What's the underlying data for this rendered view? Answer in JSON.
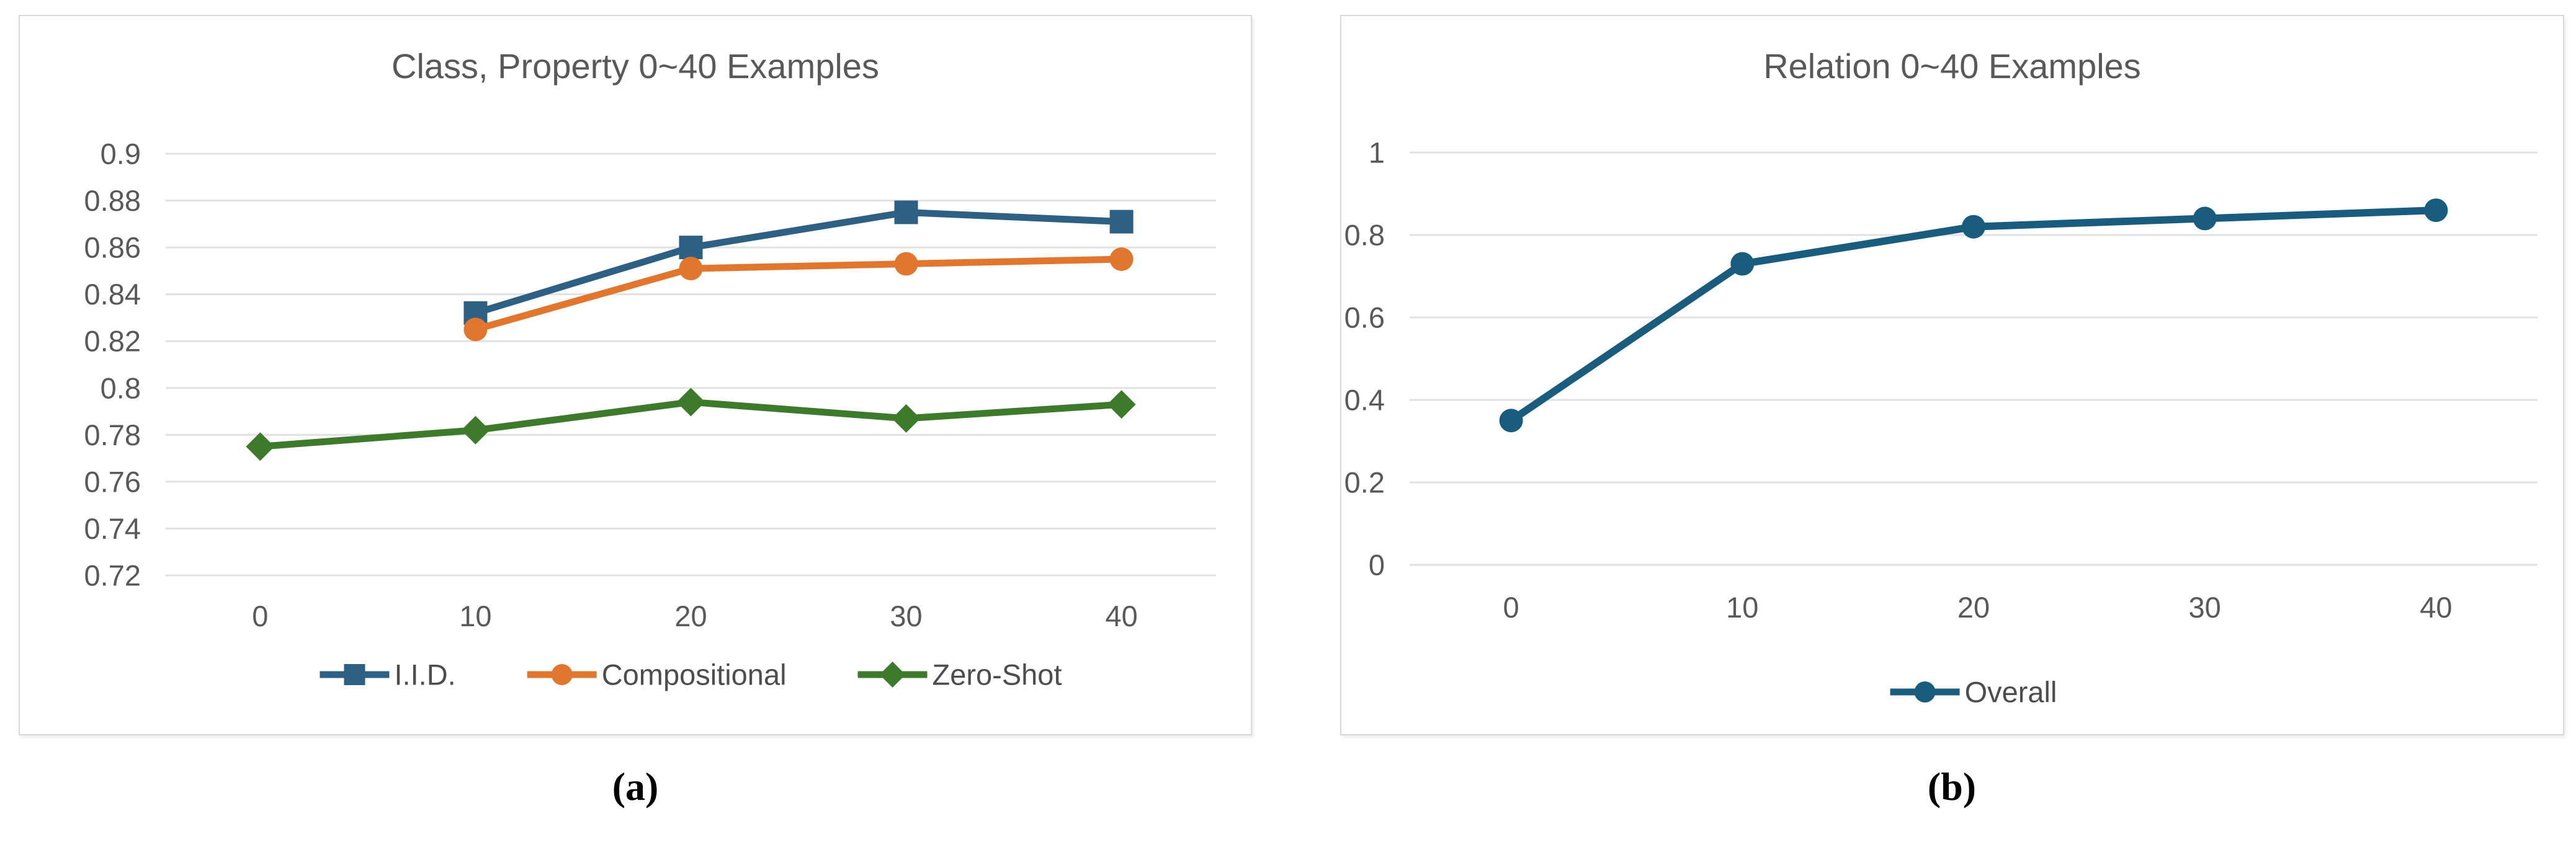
{
  "figure": {
    "background": "#ffffff",
    "panel_border_color": "#d8d8d8",
    "gridline_color": "#e2e2e2",
    "title_color": "#595959",
    "tick_label_color": "#595959",
    "legend_text_color": "#4d4d4d"
  },
  "chart_data": [
    {
      "id": "class-property",
      "type": "line",
      "title": "Class, Property  0~40 Examples",
      "categories": [
        "0",
        "10",
        "20",
        "30",
        "40"
      ],
      "y_tick_labels": [
        "0.9",
        "0.88",
        "0.86",
        "0.84",
        "0.82",
        "0.8",
        "0.78",
        "0.76",
        "0.74",
        "0.72"
      ],
      "ylim": [
        0.72,
        0.9
      ],
      "grid": true,
      "legend_position": "bottom",
      "series": [
        {
          "name": "I.I.D.",
          "color": "#2E6083",
          "marker": "square",
          "values": [
            null,
            0.832,
            0.86,
            0.875,
            0.871
          ]
        },
        {
          "name": "Compositional",
          "color": "#E1772F",
          "marker": "circle",
          "values": [
            null,
            0.825,
            0.851,
            0.853,
            0.855
          ]
        },
        {
          "name": "Zero-Shot",
          "color": "#3D7A2B",
          "marker": "diamond",
          "values": [
            0.775,
            0.782,
            0.794,
            0.787,
            0.793
          ]
        }
      ],
      "caption": "(a)"
    },
    {
      "id": "relation",
      "type": "line",
      "title": "Relation  0~40 Examples",
      "categories": [
        "0",
        "10",
        "20",
        "30",
        "40"
      ],
      "y_tick_labels": [
        "1",
        "0.8",
        "0.6",
        "0.4",
        "0.2",
        "0"
      ],
      "ylim": [
        0,
        1
      ],
      "grid": true,
      "legend_position": "bottom",
      "series": [
        {
          "name": "Overall",
          "color": "#1A5C7D",
          "marker": "circle",
          "values": [
            0.35,
            0.73,
            0.82,
            0.84,
            0.86
          ]
        }
      ],
      "caption": "(b)"
    }
  ]
}
